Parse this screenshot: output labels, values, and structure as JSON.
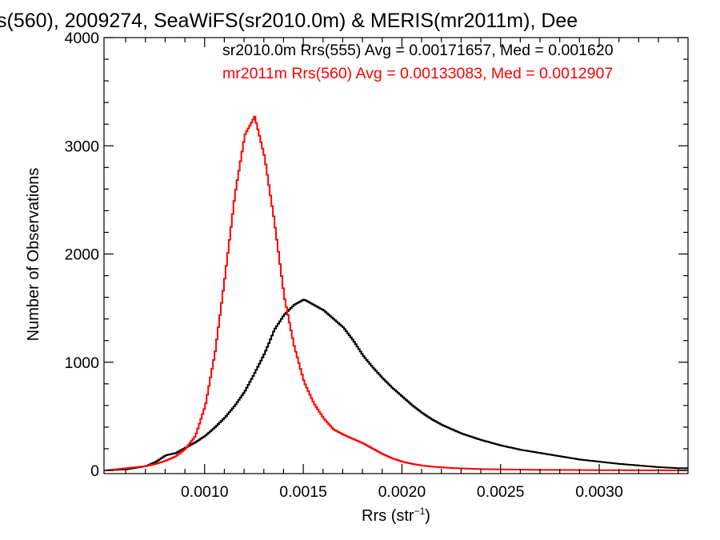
{
  "chart_data": {
    "type": "histogram",
    "title": "s(560), 2009274, SeaWiFS(sr2010.0m) & MERIS(mr2011m), Dee",
    "xlabel": "Rrs (str",
    "xlabel_sup": "−1",
    "xlabel_close": ")",
    "ylabel": "Number of Observations",
    "xlim": [
      0.00049,
      0.00345
    ],
    "ylim": [
      0,
      4000
    ],
    "x_ticks": [
      {
        "value": 0.001,
        "label": "0.0010"
      },
      {
        "value": 0.0015,
        "label": "0.0015"
      },
      {
        "value": 0.002,
        "label": "0.0020"
      },
      {
        "value": 0.0025,
        "label": "0.0025"
      },
      {
        "value": 0.003,
        "label": "0.0030"
      }
    ],
    "y_ticks": [
      {
        "value": 0,
        "label": "0"
      },
      {
        "value": 1000,
        "label": "1000"
      },
      {
        "value": 2000,
        "label": "2000"
      },
      {
        "value": 3000,
        "label": "3000"
      },
      {
        "value": 4000,
        "label": "4000"
      }
    ],
    "legend": [
      {
        "text": "sr2010.0m Rrs(555) Avg = 0.00171657, Med = 0.001620",
        "color": "#000000"
      },
      {
        "text": "mr2011m Rrs(560) Avg = 0.00133083, Med = 0.0012907",
        "color": "#ff0000"
      }
    ],
    "series": [
      {
        "color": "#000000",
        "x": [
          0.0005,
          0.0006,
          0.0007,
          0.00075,
          0.0008,
          0.00085,
          0.0009,
          0.00095,
          0.001,
          0.00105,
          0.0011,
          0.00115,
          0.0012,
          0.00125,
          0.0013,
          0.00135,
          0.0014,
          0.00145,
          0.0015,
          0.00155,
          0.0016,
          0.00165,
          0.0017,
          0.00175,
          0.0018,
          0.00185,
          0.0019,
          0.00195,
          0.002,
          0.00205,
          0.0021,
          0.00215,
          0.0022,
          0.00225,
          0.0023,
          0.00235,
          0.0024,
          0.0025,
          0.0026,
          0.0027,
          0.0028,
          0.0029,
          0.003,
          0.0031,
          0.0032,
          0.0033,
          0.0034
        ],
        "values": [
          0,
          10,
          40,
          80,
          140,
          160,
          210,
          260,
          320,
          400,
          490,
          600,
          730,
          900,
          1080,
          1300,
          1440,
          1530,
          1580,
          1530,
          1480,
          1400,
          1320,
          1200,
          1060,
          950,
          850,
          760,
          680,
          600,
          530,
          470,
          420,
          380,
          340,
          310,
          280,
          230,
          190,
          160,
          130,
          100,
          80,
          60,
          45,
          30,
          20
        ]
      },
      {
        "color": "#ff0000",
        "x": [
          0.0005,
          0.0006,
          0.0007,
          0.00075,
          0.0008,
          0.00085,
          0.0009,
          0.00095,
          0.001,
          0.00105,
          0.0011,
          0.00115,
          0.0012,
          0.00125,
          0.0013,
          0.00135,
          0.0014,
          0.00145,
          0.0015,
          0.00155,
          0.0016,
          0.00165,
          0.0017,
          0.00175,
          0.0018,
          0.00185,
          0.0019,
          0.00195,
          0.002,
          0.00205,
          0.0021,
          0.00215,
          0.0022,
          0.00225,
          0.0023,
          0.00235,
          0.0024,
          0.0025,
          0.0026,
          0.0027,
          0.0028,
          0.0029,
          0.003,
          0.0031,
          0.0032,
          0.0033,
          0.0034
        ],
        "values": [
          0,
          20,
          40,
          60,
          90,
          130,
          200,
          320,
          600,
          1100,
          1800,
          2550,
          3100,
          3270,
          2900,
          2300,
          1600,
          1150,
          820,
          620,
          480,
          380,
          330,
          290,
          250,
          200,
          150,
          110,
          80,
          60,
          45,
          35,
          28,
          22,
          18,
          15,
          12,
          9,
          7,
          5,
          4,
          3,
          2,
          2,
          1,
          1,
          0
        ]
      }
    ],
    "grid": false
  }
}
